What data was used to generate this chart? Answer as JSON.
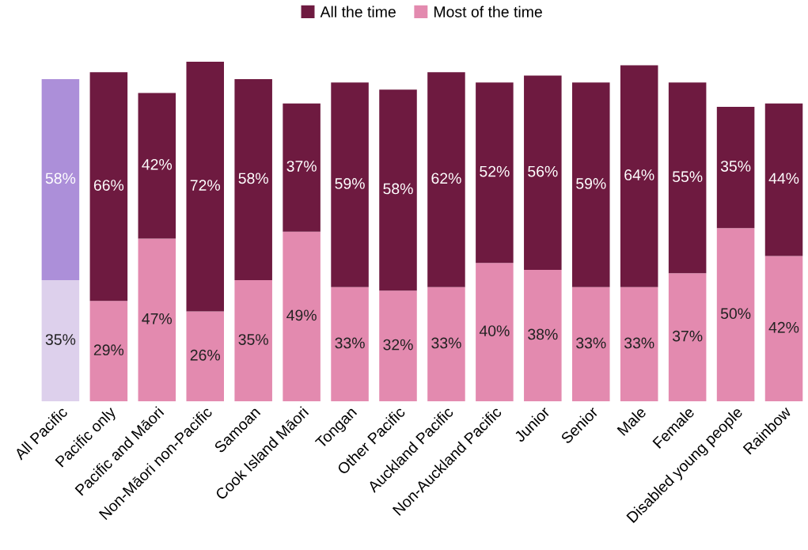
{
  "chart_data": {
    "type": "bar",
    "stacked": true,
    "legend": "top",
    "grid": false,
    "categories": [
      "All Pacific",
      "Pacific only",
      "Pacific and Māori",
      "Non-Māori non-Pacific",
      "Samoan",
      "Cook Island Māori",
      "Tongan",
      "Other Pacific",
      "Auckland Pacific",
      "Non-Auckland Pacific",
      "Junior",
      "Senior",
      "Male",
      "Female",
      "Disabled young people",
      "Rainbow"
    ],
    "series": [
      {
        "name": "Most of the time",
        "color": "#e38aaf",
        "colors": [
          "#ddd0ec",
          "#e38aaf",
          "#e38aaf",
          "#e38aaf",
          "#e38aaf",
          "#e38aaf",
          "#e38aaf",
          "#e38aaf",
          "#e38aaf",
          "#e38aaf",
          "#e38aaf",
          "#e38aaf",
          "#e38aaf",
          "#e38aaf",
          "#e38aaf",
          "#e38aaf"
        ],
        "values": [
          35,
          29,
          47,
          26,
          35,
          49,
          33,
          32,
          33,
          40,
          38,
          33,
          33,
          37,
          50,
          42
        ],
        "value_labels": [
          "35%",
          "29%",
          "47%",
          "26%",
          "35%",
          "49%",
          "33%",
          "32%",
          "33%",
          "40%",
          "38%",
          "33%",
          "33%",
          "37%",
          "50%",
          "42%"
        ]
      },
      {
        "name": "All the time",
        "color": "#6e1a40",
        "colors": [
          "#ac8fd9",
          "#6e1a40",
          "#6e1a40",
          "#6e1a40",
          "#6e1a40",
          "#6e1a40",
          "#6e1a40",
          "#6e1a40",
          "#6e1a40",
          "#6e1a40",
          "#6e1a40",
          "#6e1a40",
          "#6e1a40",
          "#6e1a40",
          "#6e1a40",
          "#6e1a40"
        ],
        "values": [
          58,
          66,
          42,
          72,
          58,
          37,
          59,
          58,
          62,
          52,
          56,
          59,
          64,
          55,
          35,
          44
        ],
        "value_labels": [
          "58%",
          "66%",
          "42%",
          "72%",
          "58%",
          "37%",
          "59%",
          "58%",
          "62%",
          "52%",
          "56%",
          "59%",
          "64%",
          "55%",
          "35%",
          "44%"
        ]
      }
    ]
  }
}
